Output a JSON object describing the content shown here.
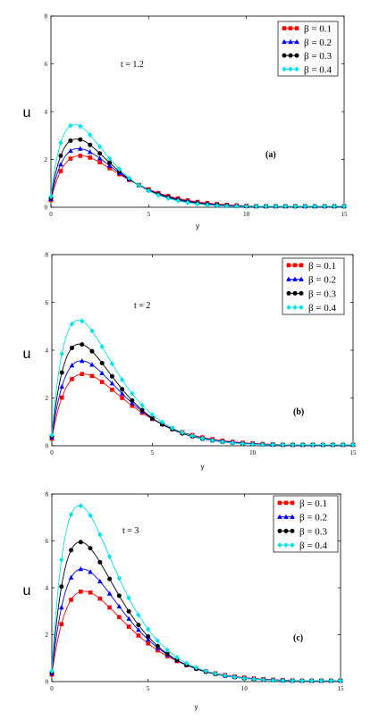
{
  "colors": {
    "beta_0_1": "#ff0000",
    "beta_0_2": "#0000ff",
    "beta_0_3": "#000000",
    "beta_0_4": "#00e5ee"
  },
  "chart_data": [
    {
      "type": "line",
      "panel": "(a)",
      "annotation": "t = 1.2",
      "xlabel": "y",
      "ylabel": "u",
      "xlim": [
        0,
        15
      ],
      "ylim": [
        0,
        8
      ],
      "xticks": [
        0,
        5,
        10,
        15
      ],
      "yticks": [
        0,
        2,
        4,
        6,
        8
      ],
      "grid": false,
      "legend_position": "top-right",
      "series": [
        {
          "name": "β = 0.1",
          "marker": "square",
          "color": "#ff0000",
          "peak": 2.15,
          "peak_at": 1.55,
          "start": 0.3
        },
        {
          "name": "β = 0.2",
          "marker": "triangle",
          "color": "#0000ff",
          "peak": 2.45,
          "peak_at": 1.45,
          "start": 0.35
        },
        {
          "name": "β = 0.3",
          "marker": "circle",
          "color": "#000000",
          "peak": 2.85,
          "peak_at": 1.35,
          "start": 0.4
        },
        {
          "name": "β = 0.4",
          "marker": "diamond",
          "color": "#00e5ee",
          "peak": 3.45,
          "peak_at": 1.25,
          "start": 0.45
        }
      ]
    },
    {
      "type": "line",
      "panel": "(b)",
      "annotation": "t = 2",
      "xlabel": "y",
      "ylabel": "u",
      "xlim": [
        0,
        15
      ],
      "ylim": [
        0,
        8
      ],
      "xticks": [
        0,
        5,
        10,
        15
      ],
      "yticks": [
        0,
        2,
        4,
        6,
        8
      ],
      "grid": false,
      "legend_position": "top-right",
      "series": [
        {
          "name": "β = 0.1",
          "marker": "square",
          "color": "#ff0000",
          "peak": 3.0,
          "peak_at": 1.6,
          "start": 0.3
        },
        {
          "name": "β = 0.2",
          "marker": "triangle",
          "color": "#0000ff",
          "peak": 3.55,
          "peak_at": 1.5,
          "start": 0.35
        },
        {
          "name": "β = 0.3",
          "marker": "circle",
          "color": "#000000",
          "peak": 4.25,
          "peak_at": 1.4,
          "start": 0.4
        },
        {
          "name": "β = 0.4",
          "marker": "diamond",
          "color": "#00e5ee",
          "peak": 5.25,
          "peak_at": 1.35,
          "start": 0.45
        }
      ]
    },
    {
      "type": "line",
      "panel": "(c)",
      "annotation": "t = 3",
      "xlabel": "y",
      "ylabel": "u",
      "xlim": [
        0,
        15
      ],
      "ylim": [
        0,
        8
      ],
      "xticks": [
        0,
        5,
        10,
        15
      ],
      "yticks": [
        0,
        2,
        4,
        6,
        8
      ],
      "grid": false,
      "legend_position": "top-right",
      "series": [
        {
          "name": "β = 0.1",
          "marker": "square",
          "color": "#ff0000",
          "peak": 3.85,
          "peak_at": 1.7,
          "start": 0.3
        },
        {
          "name": "β = 0.2",
          "marker": "triangle",
          "color": "#0000ff",
          "peak": 4.8,
          "peak_at": 1.6,
          "start": 0.35
        },
        {
          "name": "β = 0.3",
          "marker": "circle",
          "color": "#000000",
          "peak": 5.95,
          "peak_at": 1.5,
          "start": 0.4
        },
        {
          "name": "β = 0.4",
          "marker": "diamond",
          "color": "#00e5ee",
          "peak": 7.5,
          "peak_at": 1.45,
          "start": 0.45
        }
      ]
    }
  ]
}
